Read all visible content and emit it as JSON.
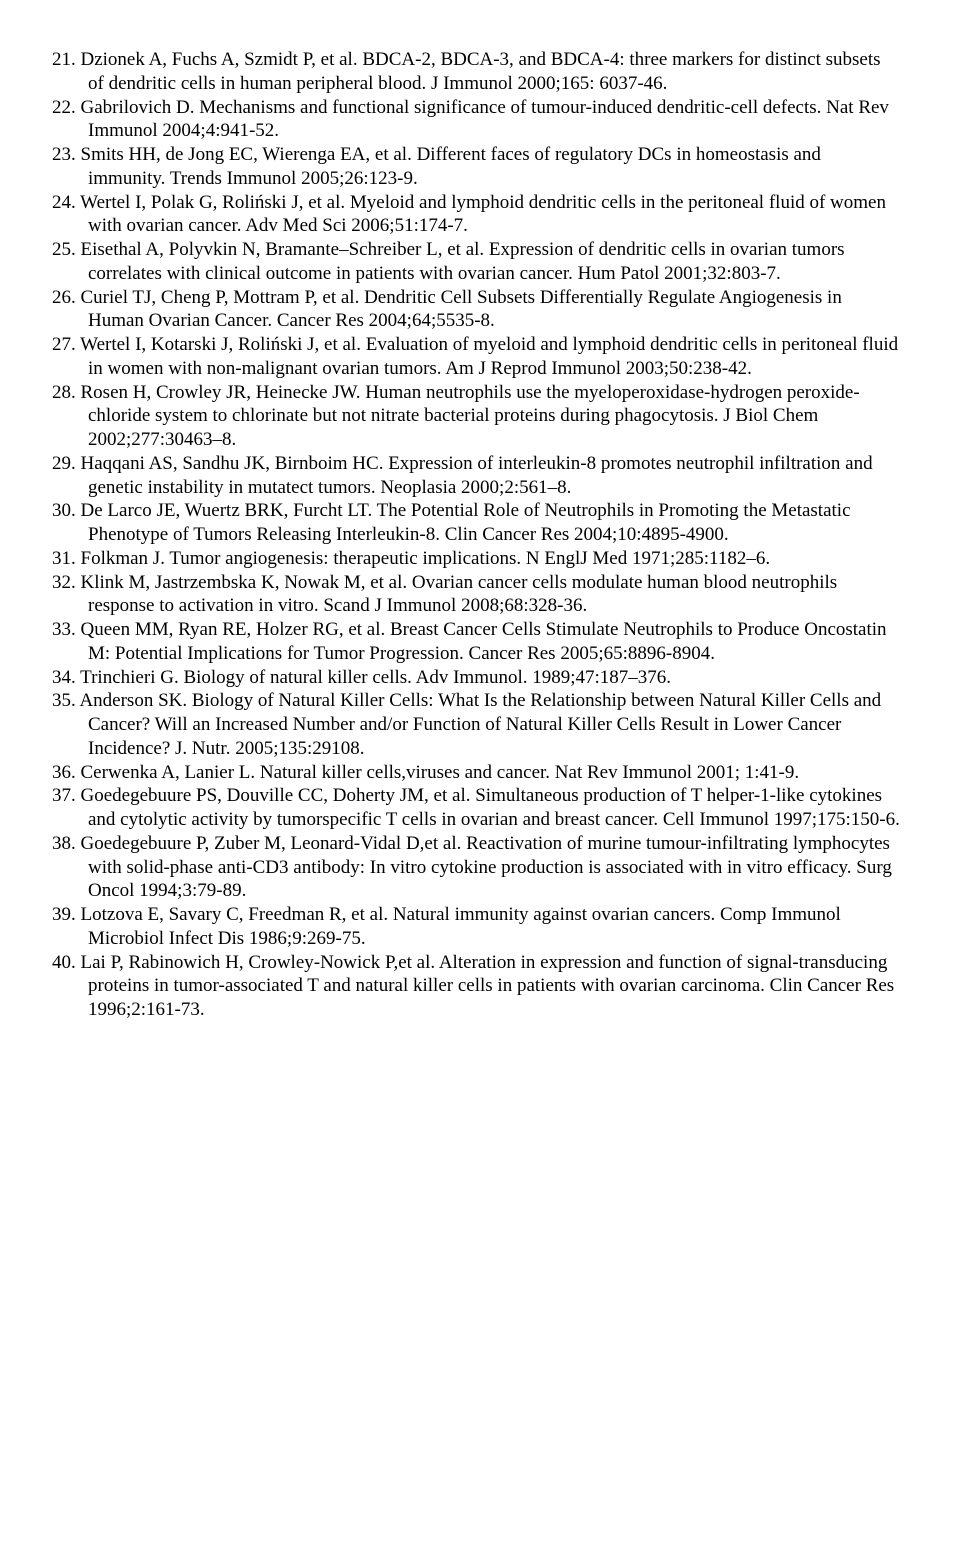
{
  "references": [
    "Dzionek A, Fuchs A, Szmidt P, et al. BDCA-2, BDCA-3, and BDCA-4: three markers for distinct subsets of dendritic cells in human peripheral blood. J Immunol 2000;165: 6037-46.",
    "Gabrilovich D. Mechanisms and functional significance of tumour-induced dendritic-cell defects. Nat Rev Immunol 2004;4:941-52.",
    "Smits HH,  de Jong EC, Wierenga EA, et al. Different faces of regulatory DCs in homeostasis and immunity. Trends Immunol 2005;26:123-9.",
    "Wertel I, Polak G, Roliński J, et al. Myeloid and lymphoid dendritic cells in the peritoneal fluid of women with ovarian cancer. Adv Med Sci 2006;51:174-7.",
    "Eisethal A, Polyvkin N, Bramante–Schreiber L, et al. Expression of dendritic cells in ovarian tumors correlates with clinical outcome in patients with ovarian cancer. Hum Patol 2001;32:803-7.",
    "Curiel TJ, Cheng P,  Mottram P, et al. Dendritic Cell Subsets Differentially Regulate Angiogenesis in Human Ovarian Cancer. Cancer Res 2004;64;5535-8.",
    "Wertel I, Kotarski J, Roliński J, et al. Evaluation of myeloid and lymphoid dendritic cells in peritoneal fluid in women with non-malignant ovarian tumors. Am J Reprod Immunol 2003;50:238-42.",
    "Rosen H, Crowley JR, Heinecke JW. Human neutrophils use the myeloperoxidase-hydrogen peroxide-chloride system to chlorinate but not nitrate bacterial proteins during phagocytosis. J Biol Chem 2002;277:30463–8.",
    "Haqqani AS, Sandhu JK, Birnboim HC. Expression of interleukin-8 promotes neutrophil infiltration and genetic instability in mutatect tumors. Neoplasia 2000;2:561–8.",
    "De Larco JE, Wuertz BRK, Furcht LT. The Potential Role of Neutrophils in Promoting the Metastatic Phenotype of Tumors Releasing Interleukin-8. Clin Cancer Res 2004;10:4895-4900.",
    "Folkman J. Tumor angiogenesis: therapeutic implications. N EnglJ Med 1971;285:1182–6.",
    "Klink M, Jastrzembska K, Nowak M, et al. Ovarian cancer cells modulate human blood neutrophils response to activation in vitro. Scand J Immunol 2008;68:328-36.",
    "Queen MM, Ryan RE, Holzer RG, et al. Breast Cancer Cells Stimulate Neutrophils to Produce Oncostatin M: Potential Implications for Tumor Progression. Cancer Res 2005;65:8896-8904.",
    "Trinchieri G. Biology of natural killer cells. Adv Immunol. 1989;47:187–376.",
    "Anderson SK. Biology of Natural Killer Cells: What Is the Relationship between Natural Killer Cells and Cancer? Will an Increased Number and/or Function of Natural Killer Cells Result in Lower Cancer Incidence? J. Nutr. 2005;135:29108.",
    "Cerwenka A, Lanier L. Natural killer cells,viruses and cancer. Nat Rev Immunol 2001; 1:41-9.",
    "Goedegebuure PS, Douville CC, Doherty JM, et al. Simultaneous production of T helper-1-like cytokines and cytolytic activity by tumorspecific T cells in ovarian and breast cancer. Cell Immunol 1997;175:150-6.",
    "Goedegebuure P, Zuber M, Leonard-Vidal D,et al. Reactivation of murine tumour-infiltrating lymphocytes with solid-phase anti-CD3 antibody: In vitro cytokine production is associated with in vitro efficacy. Surg Oncol 1994;3:79-89.",
    "Lotzova E, Savary C, Freedman R, et al. Natural immunity against ovarian cancers. Comp Immunol Microbiol Infect Dis 1986;9:269-75.",
    "Lai P, Rabinowich H, Crowley-Nowick P,et al. Alteration in expression and function of signal-transducing proteins in tumor-associated T and natural killer cells in patients with ovarian carcinoma. Clin Cancer Res 1996;2:161-73."
  ]
}
